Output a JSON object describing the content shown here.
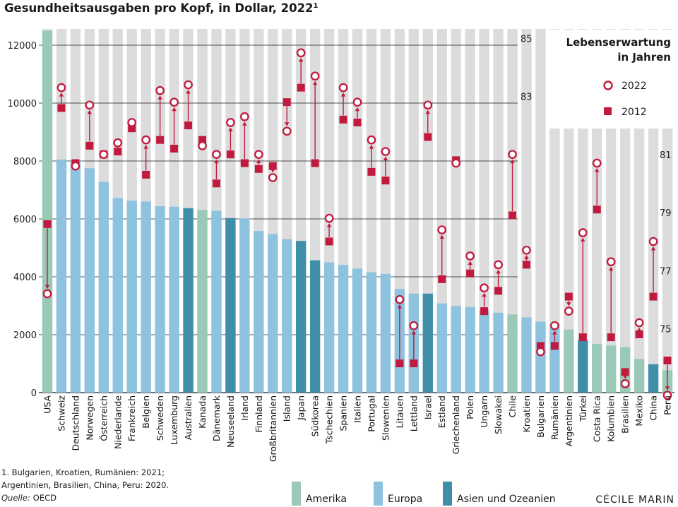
{
  "chart_data": {
    "type": "bar",
    "title": "Gesundheitsausgaben pro Kopf, in Dollar, 2022",
    "title_sup": "1",
    "y_left": {
      "ylim": [
        0,
        12500
      ],
      "ticks": [
        0,
        2000,
        4000,
        6000,
        8000,
        10000,
        12000
      ],
      "tick_labels": [
        "0",
        "2000",
        "4000",
        "6000",
        "8000",
        "10000",
        "12000"
      ]
    },
    "y_right": {
      "title": "Lebenserwartung in Jahren",
      "title_lines": [
        "Lebenserwartung",
        "in Jahren"
      ],
      "ylim": [
        73.0,
        85.9
      ],
      "ticks": [
        75,
        77,
        79,
        81,
        83,
        85
      ],
      "tick_labels": [
        "75",
        "77",
        "79",
        "81",
        "83",
        "85"
      ]
    },
    "legend": {
      "label_2022": "2022",
      "label_2012": "2012",
      "position": "top-right"
    },
    "regions": [
      {
        "key": "amerika",
        "label": "Amerika",
        "color": "#9bc9b8"
      },
      {
        "key": "europa",
        "label": "Europa",
        "color": "#8ec3e0"
      },
      {
        "key": "asien",
        "label": "Asien und Ozeanien",
        "color": "#3f8fa9"
      }
    ],
    "colors": {
      "marker": "#c01a3f",
      "stripe": "#dcdcdc",
      "grid": "#1a1a1a"
    },
    "countries": [
      {
        "name": "USA",
        "region": "amerika",
        "spend": 12500,
        "le_2022": 76.4,
        "le_2012": 78.8
      },
      {
        "name": "Schweiz",
        "region": "europa",
        "spend": 8050,
        "le_2022": 83.5,
        "le_2012": 82.8
      },
      {
        "name": "Deutschland",
        "region": "europa",
        "spend": 8000,
        "le_2022": 80.8,
        "le_2012": 80.9
      },
      {
        "name": "Norwegen",
        "region": "europa",
        "spend": 7750,
        "le_2022": 82.9,
        "le_2012": 81.5
      },
      {
        "name": "Österreich",
        "region": "europa",
        "spend": 7280,
        "le_2022": 81.2,
        "le_2012": 81.2
      },
      {
        "name": "Niederlande",
        "region": "europa",
        "spend": 6720,
        "le_2022": 81.6,
        "le_2012": 81.3
      },
      {
        "name": "Frankreich",
        "region": "europa",
        "spend": 6630,
        "le_2022": 82.3,
        "le_2012": 82.1
      },
      {
        "name": "Belgien",
        "region": "europa",
        "spend": 6600,
        "le_2022": 81.7,
        "le_2012": 80.5
      },
      {
        "name": "Schweden",
        "region": "europa",
        "spend": 6440,
        "le_2022": 83.4,
        "le_2012": 81.7
      },
      {
        "name": "Luxemburg",
        "region": "europa",
        "spend": 6420,
        "le_2022": 83.0,
        "le_2012": 81.4
      },
      {
        "name": "Australien",
        "region": "asien",
        "spend": 6370,
        "le_2022": 83.6,
        "le_2012": 82.2
      },
      {
        "name": "Kanada",
        "region": "amerika",
        "spend": 6310,
        "le_2022": 81.5,
        "le_2012": 81.7
      },
      {
        "name": "Dänemark",
        "region": "europa",
        "spend": 6280,
        "le_2022": 81.2,
        "le_2012": 80.2
      },
      {
        "name": "Neuseeland",
        "region": "asien",
        "spend": 6030,
        "le_2022": 82.3,
        "le_2012": 81.2
      },
      {
        "name": "Irland",
        "region": "europa",
        "spend": 6010,
        "le_2022": 82.5,
        "le_2012": 80.9
      },
      {
        "name": "Finnland",
        "region": "europa",
        "spend": 5580,
        "le_2022": 81.2,
        "le_2012": 80.7
      },
      {
        "name": "Großbritannien",
        "region": "europa",
        "spend": 5480,
        "le_2022": 80.4,
        "le_2012": 80.8
      },
      {
        "name": "Island",
        "region": "europa",
        "spend": 5300,
        "le_2022": 82.0,
        "le_2012": 83.0
      },
      {
        "name": "Japan",
        "region": "asien",
        "spend": 5240,
        "le_2022": 84.7,
        "le_2012": 83.5
      },
      {
        "name": "Südkorea",
        "region": "asien",
        "spend": 4570,
        "le_2022": 83.9,
        "le_2012": 80.9
      },
      {
        "name": "Tschechien",
        "region": "europa",
        "spend": 4500,
        "le_2022": 79.0,
        "le_2012": 78.2
      },
      {
        "name": "Spanien",
        "region": "europa",
        "spend": 4410,
        "le_2022": 83.5,
        "le_2012": 82.4
      },
      {
        "name": "Italien",
        "region": "europa",
        "spend": 4280,
        "le_2022": 83.0,
        "le_2012": 82.3
      },
      {
        "name": "Portugal",
        "region": "europa",
        "spend": 4160,
        "le_2022": 81.7,
        "le_2012": 80.6
      },
      {
        "name": "Slowenien",
        "region": "europa",
        "spend": 4100,
        "le_2022": 81.3,
        "le_2012": 80.3
      },
      {
        "name": "Litauen",
        "region": "europa",
        "spend": 3580,
        "le_2022": 76.2,
        "le_2012": 74.0
      },
      {
        "name": "Lettland",
        "region": "europa",
        "spend": 3420,
        "le_2022": 75.3,
        "le_2012": 74.0
      },
      {
        "name": "Israel",
        "region": "asien",
        "spend": 3420,
        "le_2022": 82.9,
        "le_2012": 81.8
      },
      {
        "name": "Estland",
        "region": "europa",
        "spend": 3080,
        "le_2022": 78.6,
        "le_2012": 76.9
      },
      {
        "name": "Griechenland",
        "region": "europa",
        "spend": 2990,
        "le_2022": 80.9,
        "le_2012": 81.0
      },
      {
        "name": "Polen",
        "region": "europa",
        "spend": 2960,
        "le_2022": 77.7,
        "le_2012": 77.1
      },
      {
        "name": "Ungarn",
        "region": "europa",
        "spend": 2840,
        "le_2022": 76.6,
        "le_2012": 75.8
      },
      {
        "name": "Slowakei",
        "region": "europa",
        "spend": 2760,
        "le_2022": 77.4,
        "le_2012": 76.5
      },
      {
        "name": "Chile",
        "region": "amerika",
        "spend": 2700,
        "le_2022": 81.2,
        "le_2012": 79.1
      },
      {
        "name": "Kroatien",
        "region": "europa",
        "spend": 2600,
        "le_2022": 77.9,
        "le_2012": 77.4
      },
      {
        "name": "Bulgarien",
        "region": "europa",
        "spend": 2450,
        "le_2022": 74.4,
        "le_2012": 74.6
      },
      {
        "name": "Rumänien",
        "region": "europa",
        "spend": 2380,
        "le_2022": 75.3,
        "le_2012": 74.6
      },
      {
        "name": "Argentinien",
        "region": "amerika",
        "spend": 2180,
        "le_2022": 75.8,
        "le_2012": 76.3
      },
      {
        "name": "Türkei",
        "region": "asien",
        "spend": 1800,
        "le_2022": 78.5,
        "le_2012": 74.9
      },
      {
        "name": "Costa Rica",
        "region": "amerika",
        "spend": 1680,
        "le_2022": 80.9,
        "le_2012": 79.3
      },
      {
        "name": "Kolumbien",
        "region": "amerika",
        "spend": 1620,
        "le_2022": 77.5,
        "le_2012": 74.9
      },
      {
        "name": "Brasilien",
        "region": "amerika",
        "spend": 1570,
        "le_2022": 73.3,
        "le_2012": 73.7
      },
      {
        "name": "Mexiko",
        "region": "amerika",
        "spend": 1160,
        "le_2022": 75.4,
        "le_2012": 75.0
      },
      {
        "name": "China",
        "region": "asien",
        "spend": 980,
        "le_2022": 78.2,
        "le_2012": 76.3
      },
      {
        "name": "Peru",
        "region": "amerika",
        "spend": 770,
        "le_2022": 72.9,
        "le_2012": 74.1
      }
    ]
  },
  "footnote": {
    "lines": [
      "1. Bulgarien, Kroatien, Rumänien: 2021;",
      "Argentinien, Brasilien, China, Peru: 2020."
    ],
    "source_label": "Quelle:",
    "source_text": "OECD"
  },
  "credit": "CÉCILE MARIN"
}
